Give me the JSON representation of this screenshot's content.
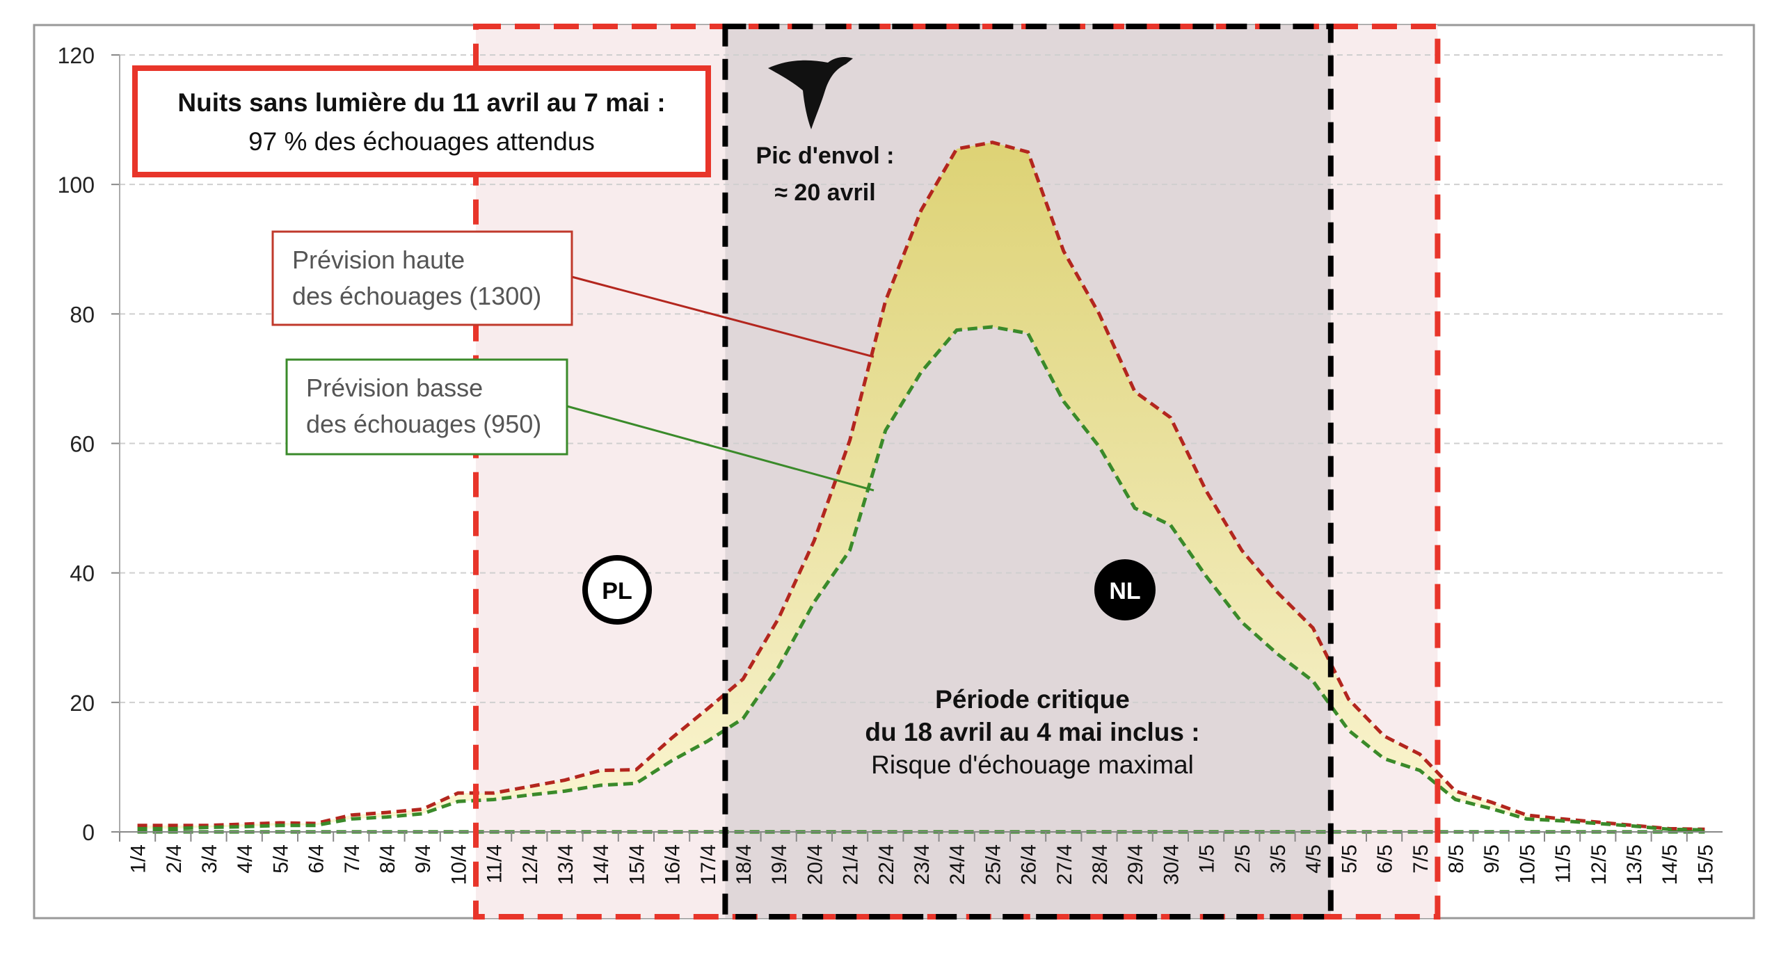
{
  "chart_data": {
    "type": "area",
    "title": "",
    "xlabel": "",
    "ylabel": "",
    "ylim": [
      0,
      120
    ],
    "yticks": [
      0,
      20,
      40,
      60,
      80,
      100,
      120
    ],
    "grid": true,
    "categories": [
      "1/4",
      "2/4",
      "3/4",
      "4/4",
      "5/4",
      "6/4",
      "7/4",
      "8/4",
      "9/4",
      "10/4",
      "11/4",
      "12/4",
      "13/4",
      "14/4",
      "15/4",
      "16/4",
      "17/4",
      "18/4",
      "19/4",
      "20/4",
      "21/4",
      "22/4",
      "23/4",
      "24/4",
      "25/4",
      "26/4",
      "27/4",
      "28/4",
      "29/4",
      "30/4",
      "1/5",
      "2/5",
      "3/5",
      "4/5",
      "5/5",
      "6/5",
      "7/5",
      "8/5",
      "9/5",
      "10/5",
      "11/5",
      "12/5",
      "13/5",
      "14/5",
      "15/5"
    ],
    "series": [
      {
        "name": "Prévision haute des échouages (1300)",
        "color": "#b3261e",
        "values": [
          1,
          1,
          1,
          1.2,
          1.4,
          1.3,
          2.6,
          3,
          3.5,
          6,
          6,
          7,
          8,
          9.5,
          9.6,
          14.5,
          19,
          23.6,
          33,
          45,
          60.5,
          82,
          96,
          105.5,
          106.5,
          105,
          89.7,
          80,
          68,
          64,
          52.7,
          43.5,
          37,
          31.5,
          20.5,
          14.8,
          12,
          6.3,
          4.6,
          2.6,
          2,
          1.5,
          1,
          0.5,
          0.4
        ]
      },
      {
        "name": "Prévision basse des échouages (950)",
        "color": "#3a8a2a",
        "values": [
          0.5,
          0.5,
          0.7,
          0.8,
          1,
          1,
          2,
          2.3,
          2.8,
          4.7,
          5,
          5.7,
          6.3,
          7.2,
          7.5,
          11,
          14,
          17.5,
          25.5,
          35.5,
          43.5,
          62,
          71,
          77.5,
          78,
          77,
          66.5,
          59.5,
          50,
          47.4,
          39.5,
          32.4,
          27.5,
          23.3,
          15.7,
          11.3,
          9.5,
          5,
          3.6,
          2,
          1.7,
          1.3,
          0.9,
          0.4,
          0.3
        ]
      },
      {
        "name": "baseline",
        "color": "#3a8a2a",
        "values": [
          0,
          0,
          0,
          0,
          0,
          0,
          0,
          0,
          0,
          0,
          0,
          0,
          0,
          0,
          0,
          0,
          0,
          0,
          0,
          0,
          0,
          0,
          0,
          0,
          0,
          0,
          0,
          0,
          0,
          0,
          0,
          0,
          0,
          0,
          0,
          0,
          0,
          0,
          0,
          0,
          0,
          0,
          0,
          0,
          0
        ]
      }
    ],
    "periods": [
      {
        "name": "nuits-sans-lumiere",
        "from": "11/4",
        "to": "7/5",
        "color": "#e8352a"
      },
      {
        "name": "periode-critique",
        "from": "18/4",
        "to": "4/5",
        "color": "#000000"
      }
    ],
    "fill_colors": {
      "top": "#ddd26a",
      "bottom": "#fbf6cf",
      "pink": "#f8eced",
      "gray": "#e0d7d9"
    },
    "annotations": {
      "headline_bold": "Nuits sans lumière du 11 avril au 7 mai :",
      "headline_sub": "97 % des échouages attendus",
      "high_line1": "Prévision haute",
      "high_line2": "des échouages (1300)",
      "low_line1": "Prévision basse",
      "low_line2": "des échouages (950)",
      "peak_line1": "Pic d'envol :",
      "peak_line2": "≈ 20 avril",
      "pl_badge": "PL",
      "nl_badge": "NL",
      "critical_line1": "Période critique",
      "critical_line2": "du 18 avril au 4 mai inclus :",
      "critical_line3": "Risque d'échouage maximal"
    }
  }
}
